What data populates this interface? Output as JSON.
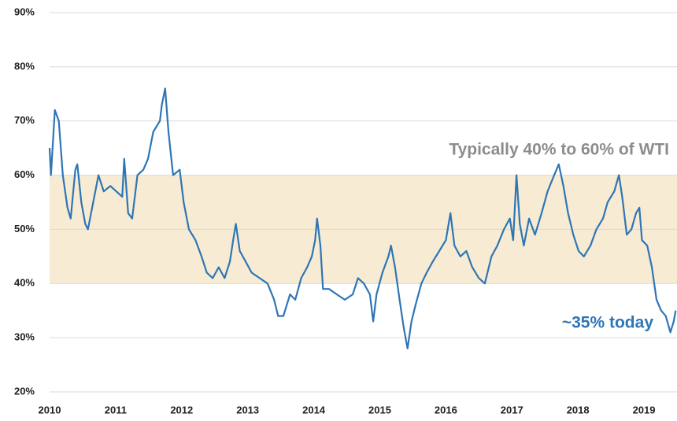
{
  "chart_data": {
    "type": "line",
    "annotations": [
      {
        "text": "Typically 40% to 60% of WTI",
        "color": "#8c8c8c"
      },
      {
        "text": "~35% today",
        "color": "#2e75b6"
      }
    ],
    "shaded_range": [
      40,
      60
    ],
    "shaded_color": "#f7ecd3",
    "x": [
      2010.0,
      2010.02,
      2010.08,
      2010.14,
      2010.2,
      2010.27,
      2010.32,
      2010.39,
      2010.42,
      2010.48,
      2010.54,
      2010.58,
      2010.66,
      2010.74,
      2010.82,
      2010.92,
      2011.01,
      2011.1,
      2011.13,
      2011.19,
      2011.25,
      2011.33,
      2011.42,
      2011.49,
      2011.57,
      2011.67,
      2011.7,
      2011.75,
      2011.8,
      2011.87,
      2011.97,
      2012.03,
      2012.11,
      2012.21,
      2012.3,
      2012.38,
      2012.47,
      2012.56,
      2012.65,
      2012.73,
      2012.78,
      2012.82,
      2012.88,
      2012.97,
      2013.06,
      2013.18,
      2013.3,
      2013.4,
      2013.46,
      2013.54,
      2013.64,
      2013.72,
      2013.81,
      2013.9,
      2013.97,
      2014.02,
      2014.05,
      2014.1,
      2014.14,
      2014.23,
      2014.35,
      2014.47,
      2014.59,
      2014.67,
      2014.76,
      2014.85,
      2014.9,
      2014.95,
      2015.04,
      2015.13,
      2015.17,
      2015.23,
      2015.3,
      2015.36,
      2015.42,
      2015.48,
      2015.54,
      2015.63,
      2015.71,
      2015.8,
      2015.9,
      2016.0,
      2016.07,
      2016.13,
      2016.22,
      2016.31,
      2016.4,
      2016.5,
      2016.59,
      2016.69,
      2016.78,
      2016.88,
      2016.97,
      2017.02,
      2017.07,
      2017.12,
      2017.18,
      2017.26,
      2017.35,
      2017.45,
      2017.54,
      2017.64,
      2017.71,
      2017.78,
      2017.85,
      2017.93,
      2018.01,
      2018.09,
      2018.19,
      2018.28,
      2018.38,
      2018.45,
      2018.55,
      2018.62,
      2018.67,
      2018.74,
      2018.81,
      2018.88,
      2018.93,
      2018.97,
      2019.05,
      2019.12,
      2019.19,
      2019.26,
      2019.33,
      2019.4,
      2019.45,
      2019.48
    ],
    "series": [
      {
        "color": "#2e75b6",
        "values": [
          65,
          60,
          72,
          70,
          60,
          54,
          52,
          61,
          62,
          55,
          51,
          50,
          55,
          60,
          57,
          58,
          57,
          56,
          63,
          53,
          52,
          60,
          61,
          63,
          68,
          70,
          73,
          76,
          68,
          60,
          61,
          55,
          50,
          48,
          45,
          42,
          41,
          43,
          41,
          44,
          48,
          51,
          46,
          44,
          42,
          41,
          40,
          37,
          34,
          34,
          38,
          37,
          41,
          43,
          45,
          48,
          52,
          47,
          39,
          39,
          38,
          37,
          38,
          41,
          40,
          38,
          33,
          38,
          42,
          45,
          47,
          43,
          37,
          32,
          28,
          33,
          36,
          40,
          42,
          44,
          46,
          48,
          53,
          47,
          45,
          46,
          43,
          41,
          40,
          45,
          47,
          50,
          52,
          48,
          60,
          51,
          47,
          52,
          49,
          53,
          57,
          60,
          62,
          58,
          53,
          49,
          46,
          45,
          47,
          50,
          52,
          55,
          57,
          60,
          56,
          49,
          50,
          53,
          54,
          48,
          47,
          43,
          37,
          35,
          34,
          31,
          33,
          35
        ]
      }
    ],
    "xlim": [
      2010,
      2019.5
    ],
    "xticks": [
      2010,
      2011,
      2012,
      2013,
      2014,
      2015,
      2016,
      2017,
      2018,
      2019
    ],
    "ylim": [
      20,
      90
    ],
    "yticks": [
      {
        "value": 20,
        "label": "20%"
      },
      {
        "value": 30,
        "label": "30%"
      },
      {
        "value": 40,
        "label": "40%"
      },
      {
        "value": 50,
        "label": "50%"
      },
      {
        "value": 60,
        "label": "60%"
      },
      {
        "value": 70,
        "label": "70%"
      },
      {
        "value": 80,
        "label": "80%"
      },
      {
        "value": 90,
        "label": "90%"
      }
    ],
    "grid": true
  }
}
